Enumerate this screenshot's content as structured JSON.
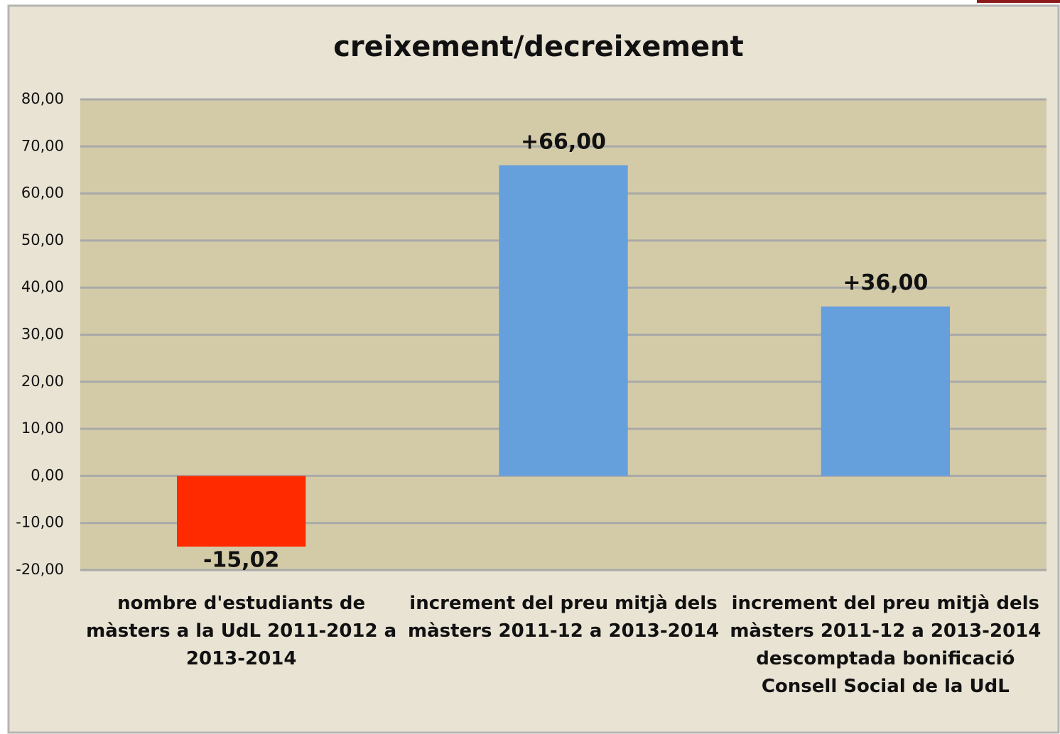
{
  "chart_data": {
    "type": "bar",
    "title": "creixement/decreixement",
    "categories": [
      "nombre d'estudiants de màsters a la UdL 2011-2012 a 2013-2014",
      "increment del preu mitjà dels màsters 2011-12 a 2013-2014",
      "increment del preu mitjà dels màsters 2011-12 a 2013-2014 descomptada bonificació Consell Social de la UdL"
    ],
    "values": [
      -15.02,
      66,
      36
    ],
    "value_labels": [
      "-15,02",
      "+66,00",
      "+36,00"
    ],
    "colors": [
      "#ff2a00",
      "#659fdc",
      "#659fdc"
    ],
    "ylim": [
      -20,
      80
    ],
    "yticks": [
      {
        "value": -20,
        "label": "-20,00"
      },
      {
        "value": -10,
        "label": "-10,00"
      },
      {
        "value": 0,
        "label": "0,00"
      },
      {
        "value": 10,
        "label": "10,00"
      },
      {
        "value": 20,
        "label": "20,00"
      },
      {
        "value": 30,
        "label": "30,00"
      },
      {
        "value": 40,
        "label": "40,00"
      },
      {
        "value": 50,
        "label": "50,00"
      },
      {
        "value": 60,
        "label": "60,00"
      },
      {
        "value": 70,
        "label": "70,00"
      },
      {
        "value": 80,
        "label": "80,00"
      }
    ],
    "grid": true
  }
}
